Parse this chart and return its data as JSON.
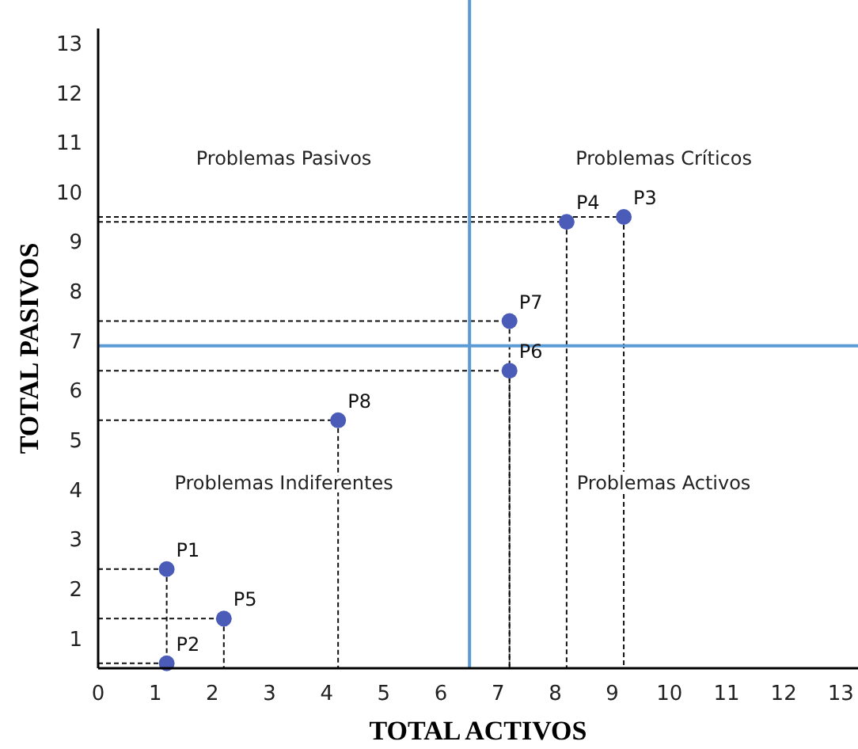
{
  "chart_data": {
    "type": "scatter",
    "xlabel": "TOTAL ACTIVOS",
    "ylabel": "TOTAL PASIVOS",
    "x": [
      1.2,
      1.2,
      9.2,
      8.2,
      2.2,
      7.2,
      7.2,
      4.2
    ],
    "values": [
      2.4,
      0.5,
      9.5,
      9.4,
      1.4,
      6.4,
      7.4,
      5.4
    ],
    "color": "#4a5cb8",
    "marker": "circle",
    "xlim": [
      0,
      13.3
    ],
    "ylim": [
      0.4,
      13.3
    ],
    "xticks": [
      0,
      1,
      2,
      3,
      4,
      5,
      6,
      7,
      8,
      9,
      10,
      11,
      12,
      13
    ],
    "yticks": [
      1,
      2,
      3,
      4,
      5,
      6,
      7,
      8,
      9,
      10,
      11,
      12,
      13
    ],
    "grid": false,
    "ref_lines": [
      {
        "axis": "x",
        "value": 6.5,
        "color": "#5b9bd5"
      },
      {
        "axis": "y",
        "value": 6.9,
        "color": "#5b9bd5"
      }
    ],
    "annotations": [
      {
        "text": "P1",
        "x": 1.2,
        "y": 2.4
      },
      {
        "text": "P2",
        "x": 1.2,
        "y": 0.5
      },
      {
        "text": "P3",
        "x": 9.2,
        "y": 9.5
      },
      {
        "text": "P4",
        "x": 8.2,
        "y": 9.4
      },
      {
        "text": "P5",
        "x": 2.2,
        "y": 1.4
      },
      {
        "text": "P6",
        "x": 7.2,
        "y": 6.4
      },
      {
        "text": "P7",
        "x": 7.2,
        "y": 7.4
      },
      {
        "text": "P8",
        "x": 4.2,
        "y": 5.4
      },
      "Problemas Pasivos",
      "Problemas Críticos",
      "Problemas Indiferentes",
      "Problemas Activos"
    ]
  }
}
